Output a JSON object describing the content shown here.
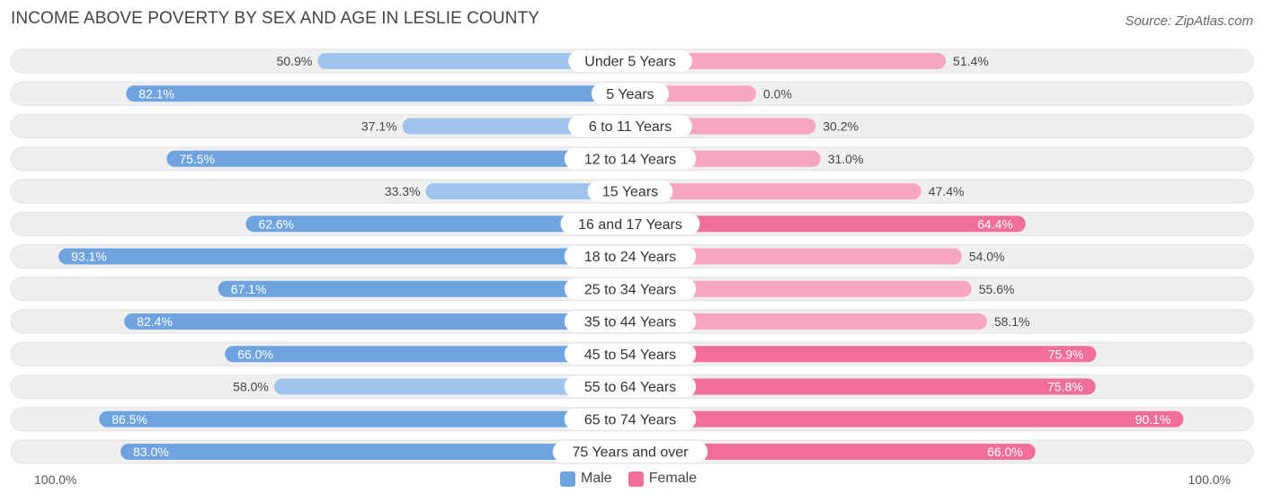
{
  "title": "INCOME ABOVE POVERTY BY SEX AND AGE IN LESLIE COUNTY",
  "source": "Source: ZipAtlas.com",
  "colors": {
    "male": "#6fa3e0",
    "male_light": "#9ec3ec",
    "female": "#f26e9a",
    "female_light": "#f7a6c2",
    "track": "#efefef"
  },
  "legend": {
    "male": "Male",
    "female": "Female"
  },
  "axis": {
    "left_label": "100.0%",
    "right_label": "100.0%"
  },
  "chart_data": {
    "type": "bar",
    "orientation": "horizontal-diverging",
    "title": "INCOME ABOVE POVERTY BY SEX AND AGE IN LESLIE COUNTY",
    "xlim": [
      -100,
      100
    ],
    "categories": [
      "Under 5 Years",
      "5 Years",
      "6 to 11 Years",
      "12 to 14 Years",
      "15 Years",
      "16 and 17 Years",
      "18 to 24 Years",
      "25 to 34 Years",
      "35 to 44 Years",
      "45 to 54 Years",
      "55 to 64 Years",
      "65 to 74 Years",
      "75 Years and over"
    ],
    "series": [
      {
        "name": "Male",
        "values": [
          50.9,
          82.1,
          37.1,
          75.5,
          33.3,
          62.6,
          93.1,
          67.1,
          82.4,
          66.0,
          58.0,
          86.5,
          83.0
        ]
      },
      {
        "name": "Female",
        "values": [
          51.4,
          0.0,
          30.2,
          31.0,
          47.4,
          64.4,
          54.0,
          55.6,
          58.1,
          75.9,
          75.8,
          90.1,
          66.0
        ]
      }
    ]
  }
}
